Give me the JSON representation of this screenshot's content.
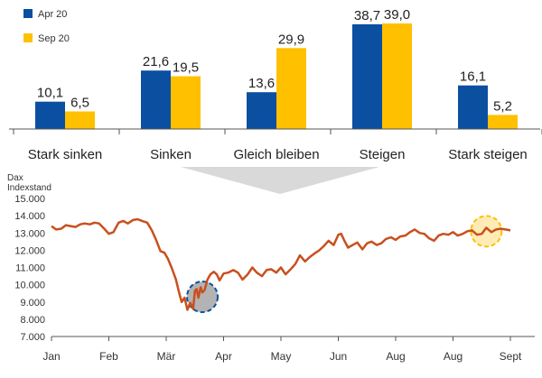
{
  "chart_data": [
    {
      "type": "bar",
      "categories": [
        "Stark sinken",
        "Sinken",
        "Gleich bleiben",
        "Steigen",
        "Stark steigen"
      ],
      "series": [
        {
          "name": "Apr 20",
          "values": [
            10.1,
            21.6,
            13.6,
            38.7,
            16.1
          ],
          "labels": [
            "10,1",
            "21,6",
            "13,6",
            "38,7",
            "16,1"
          ]
        },
        {
          "name": "Sep 20",
          "values": [
            6.5,
            19.5,
            29.9,
            39.0,
            5.2
          ],
          "labels": [
            "6,5",
            "19,5",
            "29,9",
            "39,0",
            "5,2"
          ]
        }
      ],
      "ylim": [
        0,
        40
      ],
      "legend_position": "top-left",
      "colors": {
        "Apr 20": "#0b4fa1",
        "Sep 20": "#ffc000"
      }
    },
    {
      "type": "line",
      "ylabel": "Dax Indexstand",
      "ylabel_lines": [
        "Dax",
        "Indexstand"
      ],
      "ylim": [
        7000,
        15000
      ],
      "yticks": [
        7000,
        8000,
        9000,
        10000,
        11000,
        12000,
        13000,
        14000,
        15000
      ],
      "ytick_labels": [
        "7.000",
        "8.000",
        "9.000",
        "10.000",
        "11.000",
        "12.000",
        "13.000",
        "14.000",
        "15.000"
      ],
      "xtick_labels": [
        "Jan",
        "Feb",
        "Mär",
        "Apr",
        "May",
        "Jun",
        "Aug",
        "Aug",
        "Sept"
      ],
      "xlim": [
        0,
        8
      ],
      "series": [
        {
          "color": "#c8501e",
          "x": [
            0,
            0.08,
            0.17,
            0.25,
            0.33,
            0.42,
            0.5,
            0.58,
            0.67,
            0.75,
            0.83,
            0.92,
            1.0,
            1.08,
            1.17,
            1.25,
            1.33,
            1.42,
            1.5,
            1.58,
            1.67,
            1.75,
            1.83,
            1.9,
            1.97,
            2.03,
            2.1,
            2.17,
            2.22,
            2.27,
            2.32,
            2.37,
            2.42,
            2.47,
            2.5,
            2.53,
            2.56,
            2.6,
            2.63,
            2.67,
            2.72,
            2.77,
            2.83,
            2.88,
            2.93,
            3.0,
            3.08,
            3.17,
            3.25,
            3.33,
            3.42,
            3.5,
            3.58,
            3.67,
            3.75,
            3.83,
            3.92,
            4.0,
            4.08,
            4.17,
            4.25,
            4.33,
            4.42,
            4.5,
            4.58,
            4.67,
            4.75,
            4.83,
            4.92,
            5.0,
            5.05,
            5.1,
            5.17,
            5.25,
            5.33,
            5.42,
            5.5,
            5.58,
            5.67,
            5.75,
            5.83,
            5.92,
            6.0,
            6.08,
            6.17,
            6.25,
            6.33,
            6.42,
            6.5,
            6.58,
            6.67,
            6.75,
            6.83,
            6.92,
            7.0,
            7.08,
            7.17,
            7.25,
            7.33,
            7.42,
            7.5,
            7.58,
            7.67,
            7.75,
            7.83,
            7.92,
            8.0
          ],
          "y": [
            13400,
            13200,
            13250,
            13450,
            13400,
            13350,
            13500,
            13550,
            13500,
            13600,
            13550,
            13250,
            12950,
            13050,
            13600,
            13700,
            13550,
            13750,
            13800,
            13700,
            13600,
            13150,
            12550,
            11950,
            11850,
            11500,
            10950,
            10300,
            9600,
            9000,
            9250,
            8550,
            8950,
            8600,
            9650,
            9750,
            9250,
            9850,
            9550,
            9700,
            10300,
            10600,
            10750,
            10600,
            10250,
            10650,
            10700,
            10850,
            10700,
            10300,
            10600,
            11000,
            10700,
            10500,
            10850,
            10900,
            10700,
            11000,
            10600,
            10900,
            11200,
            11700,
            11350,
            11600,
            11800,
            12000,
            12250,
            12550,
            12300,
            12900,
            12950,
            12600,
            12150,
            12300,
            12450,
            12050,
            12400,
            12500,
            12300,
            12400,
            12650,
            12750,
            12600,
            12800,
            12850,
            13050,
            13200,
            13000,
            12950,
            12700,
            12550,
            12850,
            12950,
            12900,
            13050,
            12850,
            12950,
            13100,
            13150,
            12900,
            12950,
            13300,
            13050,
            13200,
            13250,
            13200,
            13150
          ]
        }
      ],
      "annotations": [
        {
          "type": "circle",
          "x": 2.63,
          "y": 9300,
          "color": "#0b4fa1",
          "fill": "#a6a6a6"
        },
        {
          "type": "circle",
          "x": 7.58,
          "y": 13100,
          "color": "#ffc000",
          "fill": "#ffe9a8"
        }
      ]
    }
  ]
}
